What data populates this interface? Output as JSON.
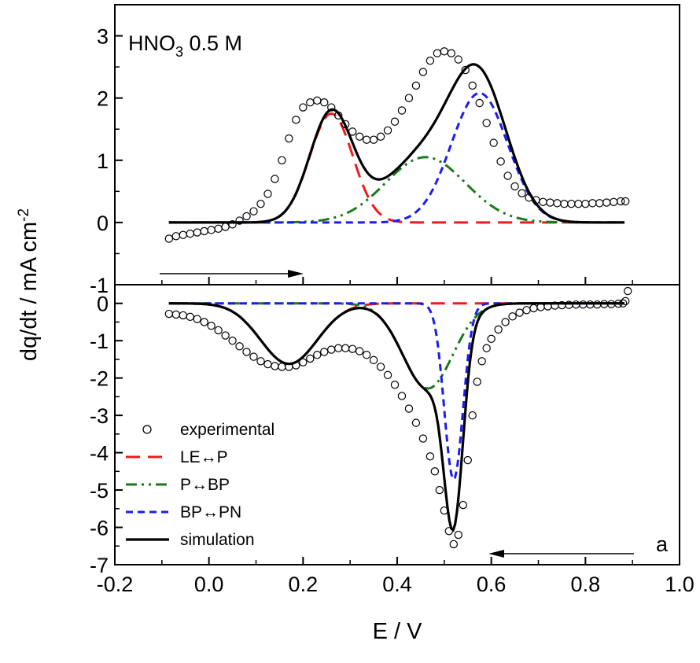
{
  "chart_data": {
    "type": "line",
    "x_label": "E / V",
    "y_label": "dq/dt / mA cm",
    "y_label_sup": "-2",
    "xlim": [
      -0.2,
      1.0
    ],
    "x_ticks": [
      "-0.2",
      "0.0",
      "0.2",
      "0.4",
      "0.6",
      "0.8",
      "1.0"
    ],
    "annotation_title": {
      "prefix": "HNO",
      "sub": "3",
      "suffix": " 0.5 M"
    },
    "panel_label": "a",
    "legend": [
      {
        "label": "experimental",
        "color": "#000000",
        "style": "circle"
      },
      {
        "label": "LE↔P",
        "color": "#ee1c1c",
        "style": "dash"
      },
      {
        "label": "P↔BP",
        "color": "#1a7a1a",
        "style": "dashdotdot"
      },
      {
        "label": "BP↔PN",
        "color": "#1c1cee",
        "style": "shortdash"
      },
      {
        "label": "simulation",
        "color": "#000000",
        "style": "solid"
      }
    ],
    "panels": [
      {
        "name": "anodic",
        "ylim": [
          -1,
          3.5
        ],
        "y_ticks": [
          "3",
          "2",
          "1",
          "0",
          "-1"
        ],
        "sweep_arrow": "right",
        "components": [
          {
            "name": "LE↔P",
            "amp": 1.75,
            "center": 0.26,
            "width": 0.065
          },
          {
            "name": "P↔BP",
            "amp": 1.05,
            "center": 0.46,
            "width": 0.12
          },
          {
            "name": "BP↔PN",
            "amp": 2.08,
            "center": 0.575,
            "width": 0.085
          }
        ],
        "experimental": {
          "x": [
            -0.085,
            -0.07,
            -0.055,
            -0.04,
            -0.025,
            -0.01,
            0.005,
            0.02,
            0.035,
            0.05,
            0.065,
            0.08,
            0.095,
            0.11,
            0.125,
            0.14,
            0.155,
            0.17,
            0.185,
            0.2,
            0.215,
            0.23,
            0.245,
            0.26,
            0.275,
            0.29,
            0.305,
            0.32,
            0.335,
            0.35,
            0.365,
            0.38,
            0.395,
            0.41,
            0.425,
            0.44,
            0.455,
            0.47,
            0.485,
            0.5,
            0.515,
            0.53,
            0.545,
            0.56,
            0.575,
            0.59,
            0.605,
            0.62,
            0.635,
            0.65,
            0.665,
            0.68,
            0.695,
            0.71,
            0.725,
            0.74,
            0.755,
            0.77,
            0.785,
            0.8,
            0.815,
            0.83,
            0.845,
            0.86,
            0.875,
            0.885
          ],
          "y": [
            -0.26,
            -0.22,
            -0.2,
            -0.18,
            -0.16,
            -0.14,
            -0.12,
            -0.1,
            -0.07,
            -0.03,
            0.03,
            0.1,
            0.18,
            0.3,
            0.46,
            0.7,
            1.0,
            1.35,
            1.65,
            1.85,
            1.93,
            1.96,
            1.93,
            1.85,
            1.72,
            1.58,
            1.46,
            1.38,
            1.33,
            1.33,
            1.38,
            1.48,
            1.62,
            1.8,
            2.0,
            2.2,
            2.42,
            2.6,
            2.72,
            2.75,
            2.72,
            2.62,
            2.45,
            2.2,
            1.92,
            1.6,
            1.28,
            0.98,
            0.75,
            0.58,
            0.47,
            0.4,
            0.36,
            0.33,
            0.32,
            0.31,
            0.3,
            0.3,
            0.3,
            0.3,
            0.31,
            0.31,
            0.32,
            0.33,
            0.34,
            0.34
          ]
        }
      },
      {
        "name": "cathodic",
        "ylim": [
          -7,
          0.5
        ],
        "y_ticks": [
          "0",
          "-1",
          "-2",
          "-3",
          "-4",
          "-5",
          "-6",
          "-7"
        ],
        "sweep_arrow": "left",
        "components": [
          {
            "name": "LE↔P",
            "amp": -1.62,
            "center": 0.17,
            "width": 0.085
          },
          {
            "name": "P↔BP",
            "amp": -2.28,
            "center": 0.465,
            "width": 0.075
          },
          {
            "name": "BP↔PN",
            "amp": -4.72,
            "center": 0.52,
            "width": 0.028
          }
        ],
        "experimental": {
          "x": [
            -0.085,
            -0.07,
            -0.055,
            -0.04,
            -0.025,
            -0.01,
            0.005,
            0.02,
            0.035,
            0.05,
            0.065,
            0.08,
            0.095,
            0.11,
            0.125,
            0.14,
            0.155,
            0.17,
            0.185,
            0.2,
            0.215,
            0.23,
            0.245,
            0.26,
            0.275,
            0.29,
            0.305,
            0.32,
            0.335,
            0.35,
            0.365,
            0.38,
            0.395,
            0.41,
            0.425,
            0.44,
            0.455,
            0.47,
            0.48,
            0.49,
            0.5,
            0.51,
            0.52,
            0.53,
            0.54,
            0.55,
            0.56,
            0.57,
            0.58,
            0.59,
            0.6,
            0.615,
            0.63,
            0.645,
            0.66,
            0.675,
            0.69,
            0.705,
            0.72,
            0.735,
            0.75,
            0.765,
            0.78,
            0.795,
            0.81,
            0.825,
            0.84,
            0.855,
            0.87,
            0.88,
            0.885,
            0.89
          ],
          "y": [
            -0.28,
            -0.3,
            -0.32,
            -0.36,
            -0.42,
            -0.5,
            -0.6,
            -0.72,
            -0.86,
            -1.0,
            -1.15,
            -1.3,
            -1.43,
            -1.55,
            -1.63,
            -1.68,
            -1.7,
            -1.7,
            -1.66,
            -1.58,
            -1.48,
            -1.38,
            -1.3,
            -1.24,
            -1.2,
            -1.2,
            -1.22,
            -1.28,
            -1.38,
            -1.52,
            -1.7,
            -1.92,
            -2.18,
            -2.48,
            -2.82,
            -3.2,
            -3.62,
            -4.1,
            -4.5,
            -5.0,
            -5.55,
            -6.1,
            -6.45,
            -6.2,
            -5.4,
            -4.2,
            -3.0,
            -2.1,
            -1.55,
            -1.2,
            -0.95,
            -0.7,
            -0.5,
            -0.35,
            -0.25,
            -0.18,
            -0.13,
            -0.1,
            -0.08,
            -0.06,
            -0.05,
            -0.04,
            -0.03,
            -0.03,
            -0.03,
            -0.03,
            -0.02,
            -0.02,
            -0.01,
            0.0,
            0.06,
            0.33
          ]
        }
      }
    ]
  }
}
